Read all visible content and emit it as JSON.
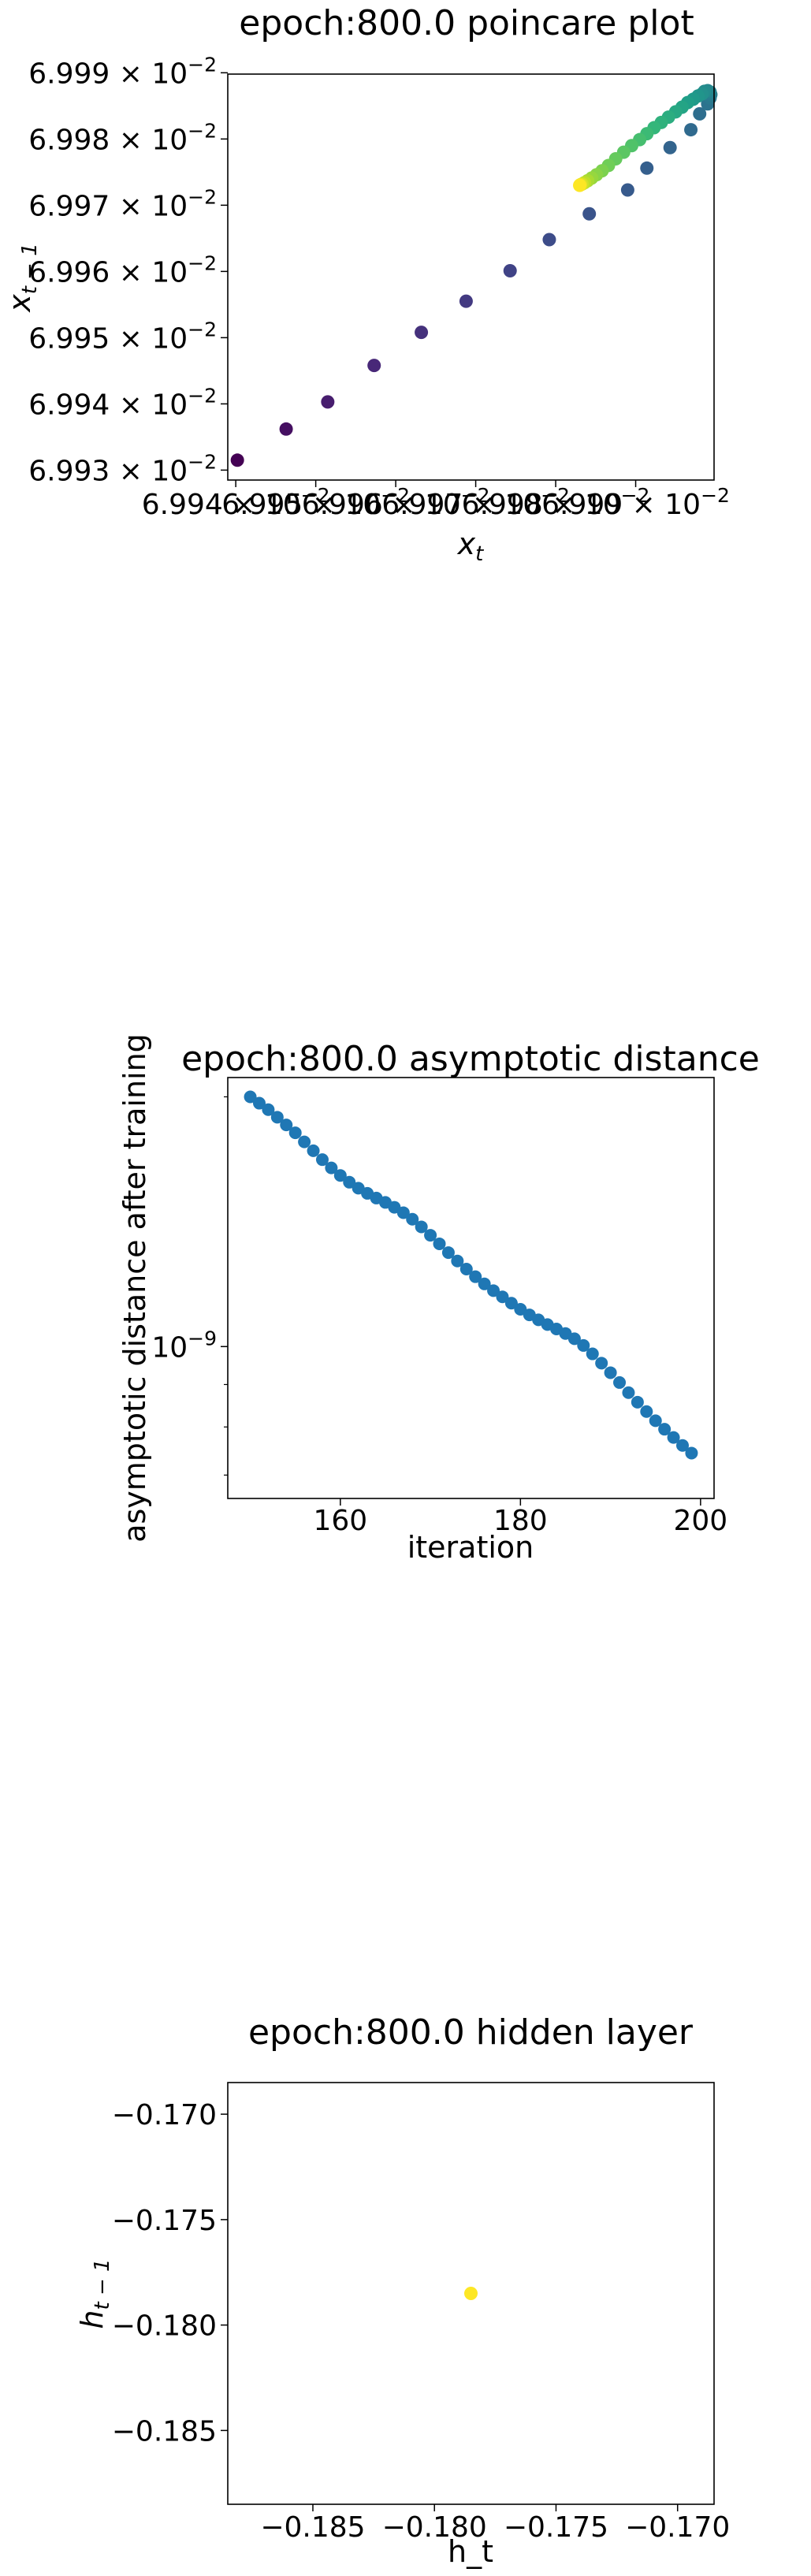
{
  "figure": {
    "background": "#ffffff"
  },
  "chart_data": [
    {
      "type": "scatter",
      "title": "epoch:800.0 poincare plot",
      "xlabel": "x_t",
      "ylabel": "x_{t-1}",
      "xlim": [
        0.069939,
        0.0699998
      ],
      "ylim": [
        0.0699285,
        0.0699898
      ],
      "colormap": "viridis",
      "xticks": [
        {
          "value": 0.06994,
          "label": "6.994 × 10^-2"
        },
        {
          "value": 0.06995,
          "label": "6.995 × 10^-2"
        },
        {
          "value": 0.06996,
          "label": "6.996 × 10^-2"
        },
        {
          "value": 0.06997,
          "label": "6.997 × 10^-2"
        },
        {
          "value": 0.06998,
          "label": "6.998 × 10^-2"
        },
        {
          "value": 0.06999,
          "label": "6.999 × 10^-2"
        }
      ],
      "yticks": [
        {
          "value": 0.06993,
          "label": "6.993 × 10^-2"
        },
        {
          "value": 0.06994,
          "label": "6.994 × 10^-2"
        },
        {
          "value": 0.06995,
          "label": "6.995 × 10^-2"
        },
        {
          "value": 0.06996,
          "label": "6.996 × 10^-2"
        },
        {
          "value": 0.06997,
          "label": "6.997 × 10^-2"
        },
        {
          "value": 0.06998,
          "label": "6.998 × 10^-2"
        },
        {
          "value": 0.06999,
          "label": "6.999 × 10^-2"
        }
      ],
      "points": [
        {
          "x": 0.0699402,
          "y": 0.0699315,
          "c": 0.0
        },
        {
          "x": 0.0699463,
          "y": 0.0699362,
          "c": 0.04
        },
        {
          "x": 0.0699515,
          "y": 0.0699403,
          "c": 0.08
        },
        {
          "x": 0.0699573,
          "y": 0.0699458,
          "c": 0.11
        },
        {
          "x": 0.0699632,
          "y": 0.0699508,
          "c": 0.14
        },
        {
          "x": 0.0699688,
          "y": 0.0699555,
          "c": 0.17
        },
        {
          "x": 0.0699743,
          "y": 0.0699601,
          "c": 0.2
        },
        {
          "x": 0.0699792,
          "y": 0.0699648,
          "c": 0.23
        },
        {
          "x": 0.0699842,
          "y": 0.0699687,
          "c": 0.26
        },
        {
          "x": 0.069989,
          "y": 0.0699723,
          "c": 0.28
        },
        {
          "x": 0.0699914,
          "y": 0.0699756,
          "c": 0.3
        },
        {
          "x": 0.0699943,
          "y": 0.0699787,
          "c": 0.32
        },
        {
          "x": 0.0699969,
          "y": 0.0699814,
          "c": 0.34
        },
        {
          "x": 0.069998,
          "y": 0.0699838,
          "c": 0.36
        },
        {
          "x": 0.069999,
          "y": 0.0699853,
          "c": 0.38
        },
        {
          "x": 0.0699993,
          "y": 0.0699862,
          "c": 0.4
        },
        {
          "x": 0.0699994,
          "y": 0.0699867,
          "c": 0.42
        },
        {
          "x": 0.0699993,
          "y": 0.0699871,
          "c": 0.44
        },
        {
          "x": 0.069999,
          "y": 0.0699873,
          "c": 0.46
        },
        {
          "x": 0.0699986,
          "y": 0.0699872,
          "c": 0.48
        },
        {
          "x": 0.0699983,
          "y": 0.0699868,
          "c": 0.5
        },
        {
          "x": 0.0699978,
          "y": 0.0699865,
          "c": 0.52
        },
        {
          "x": 0.0699972,
          "y": 0.069986,
          "c": 0.54
        },
        {
          "x": 0.0699965,
          "y": 0.0699855,
          "c": 0.56
        },
        {
          "x": 0.0699958,
          "y": 0.0699848,
          "c": 0.58
        },
        {
          "x": 0.069995,
          "y": 0.0699841,
          "c": 0.6
        },
        {
          "x": 0.0699941,
          "y": 0.0699833,
          "c": 0.62
        },
        {
          "x": 0.0699932,
          "y": 0.0699825,
          "c": 0.64
        },
        {
          "x": 0.0699923,
          "y": 0.0699817,
          "c": 0.66
        },
        {
          "x": 0.0699914,
          "y": 0.0699808,
          "c": 0.68
        },
        {
          "x": 0.0699905,
          "y": 0.0699799,
          "c": 0.7
        },
        {
          "x": 0.0699895,
          "y": 0.069979,
          "c": 0.72
        },
        {
          "x": 0.0699885,
          "y": 0.069978,
          "c": 0.74
        },
        {
          "x": 0.0699875,
          "y": 0.069977,
          "c": 0.76
        },
        {
          "x": 0.0699866,
          "y": 0.069976,
          "c": 0.78
        },
        {
          "x": 0.0699858,
          "y": 0.0699752,
          "c": 0.8
        },
        {
          "x": 0.0699851,
          "y": 0.0699746,
          "c": 0.82
        },
        {
          "x": 0.0699845,
          "y": 0.0699741,
          "c": 0.84
        },
        {
          "x": 0.069984,
          "y": 0.0699737,
          "c": 0.87
        },
        {
          "x": 0.0699836,
          "y": 0.0699734,
          "c": 0.9
        },
        {
          "x": 0.0699833,
          "y": 0.0699732,
          "c": 0.93
        },
        {
          "x": 0.0699831,
          "y": 0.0699731,
          "c": 0.96
        },
        {
          "x": 0.069983,
          "y": 0.069973,
          "c": 1.0
        }
      ]
    },
    {
      "type": "scatter",
      "title": "epoch:800.0 asymptotic distance",
      "xlabel": "iteration",
      "ylabel": "asymptotic distance after training",
      "xlim": [
        147.5,
        201.5
      ],
      "ylim": [
        6.56e-10,
        2.11e-09
      ],
      "yscale": "log",
      "color": "#1f77b4",
      "xticks": [
        160,
        180,
        200
      ],
      "yticks": [
        {
          "value": 1e-09,
          "label": "10^-9"
        }
      ],
      "x": [
        150,
        151,
        152,
        153,
        154,
        155,
        156,
        157,
        158,
        159,
        160,
        161,
        162,
        163,
        164,
        165,
        166,
        167,
        168,
        169,
        170,
        171,
        172,
        173,
        174,
        175,
        176,
        177,
        178,
        179,
        180,
        181,
        182,
        183,
        184,
        185,
        186,
        187,
        188,
        189,
        190,
        191,
        192,
        193,
        194,
        195,
        196,
        197,
        198,
        199
      ],
      "y": [
        2e-09,
        1.965e-09,
        1.93e-09,
        1.89e-09,
        1.85e-09,
        1.81e-09,
        1.765e-09,
        1.722e-09,
        1.68e-09,
        1.642e-09,
        1.608e-09,
        1.578e-09,
        1.552e-09,
        1.53e-09,
        1.51e-09,
        1.492e-09,
        1.472e-09,
        1.45e-09,
        1.424e-09,
        1.394e-09,
        1.362e-09,
        1.33e-09,
        1.298e-09,
        1.268e-09,
        1.24e-09,
        1.214e-09,
        1.19e-09,
        1.168e-09,
        1.148e-09,
        1.128e-09,
        1.109e-09,
        1.092e-09,
        1.077e-09,
        1.063e-09,
        1.05e-09,
        1.037e-09,
        1.022e-09,
        1.003e-09,
        9.8e-10,
        9.55e-10,
        9.3e-10,
        9.05e-10,
        8.8e-10,
        8.57e-10,
        8.35e-10,
        8.14e-10,
        7.95e-10,
        7.77e-10,
        7.6e-10,
        7.44e-10
      ]
    },
    {
      "type": "scatter",
      "title": "epoch:800.0 hidden layer",
      "xlabel": "h_t",
      "ylabel": "h_{t-1}",
      "xlim": [
        -0.1885,
        -0.1685
      ],
      "ylim": [
        -0.1885,
        -0.1685
      ],
      "xticks": [
        -0.185,
        -0.18,
        -0.175,
        -0.17
      ],
      "yticks": [
        -0.185,
        -0.18,
        -0.175,
        -0.17
      ],
      "color": "#fde725",
      "points": [
        {
          "x": -0.1785,
          "y": -0.1785
        }
      ]
    }
  ]
}
